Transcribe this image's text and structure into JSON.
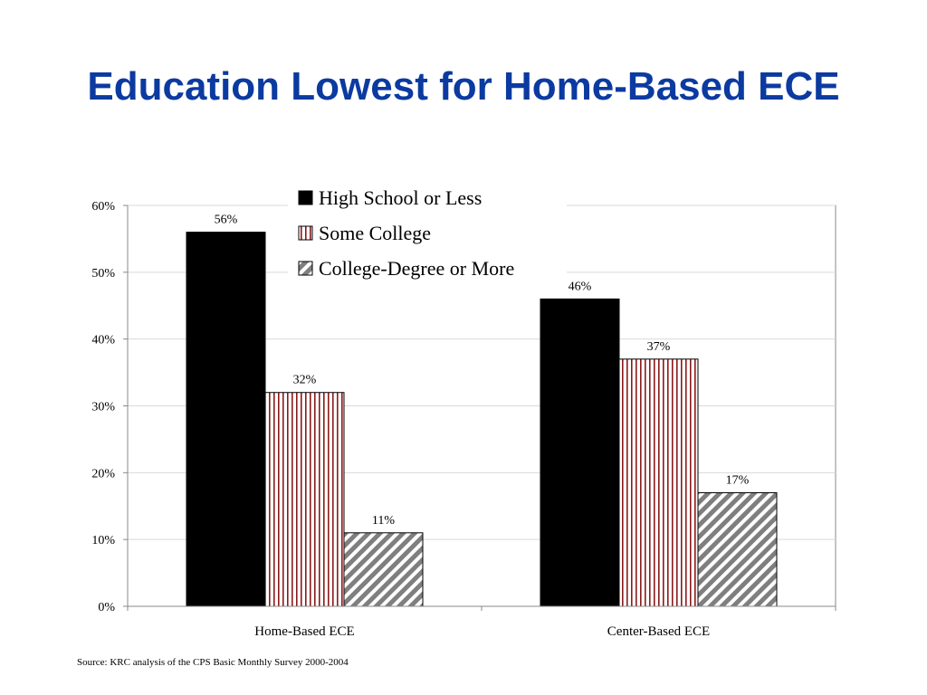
{
  "slide": {
    "title": "Education Lowest for Home-Based ECE",
    "source": "Source: KRC analysis of the CPS Basic Monthly Survey 2000-2004"
  },
  "chart_data": {
    "type": "bar",
    "categories": [
      "Home-Based ECE",
      "Center-Based ECE"
    ],
    "series": [
      {
        "name": "High School or Less",
        "values": [
          56,
          46
        ],
        "labels": [
          "56%",
          "46%"
        ],
        "color": "#000000",
        "fill": "solid"
      },
      {
        "name": "Some College",
        "values": [
          32,
          37
        ],
        "labels": [
          "32%",
          "37%"
        ],
        "color": "#8b1a1a",
        "fill": "vertical-stripes"
      },
      {
        "name": "College-Degree or More",
        "values": [
          11,
          17
        ],
        "labels": [
          "11%",
          "17%"
        ],
        "color": "#7f7f7f",
        "fill": "diagonal-hatch"
      }
    ],
    "ylim": [
      0,
      60
    ],
    "yticks": [
      0,
      10,
      20,
      30,
      40,
      50,
      60
    ],
    "ytick_labels": [
      "0%",
      "10%",
      "20%",
      "30%",
      "40%",
      "50%",
      "60%"
    ],
    "grid": true,
    "legend_position": "top-center"
  }
}
